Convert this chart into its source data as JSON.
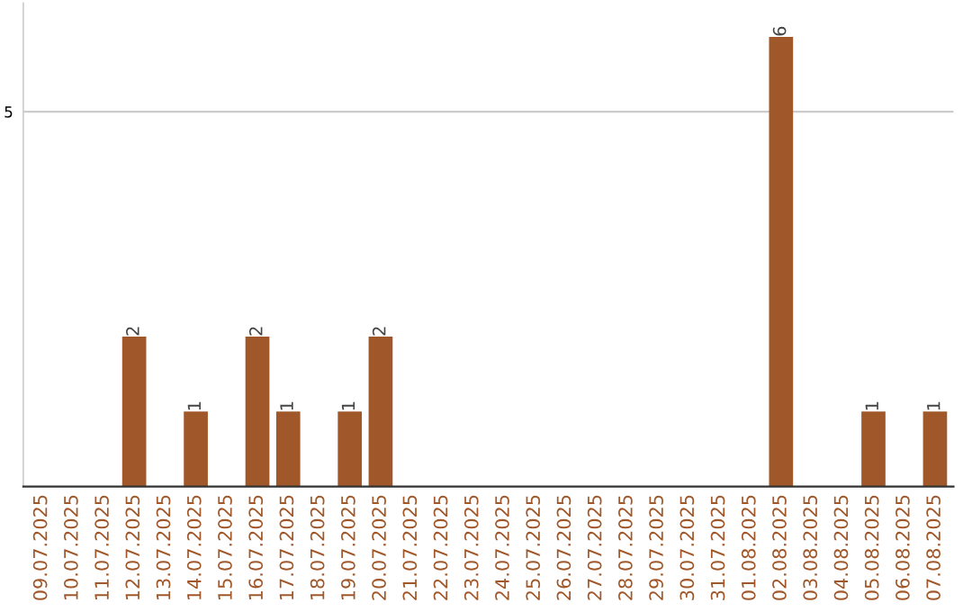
{
  "chart_data": {
    "type": "bar",
    "categories": [
      "09.07.2025",
      "10.07.2025",
      "11.07.2025",
      "12.07.2025",
      "13.07.2025",
      "14.07.2025",
      "15.07.2025",
      "16.07.2025",
      "17.07.2025",
      "18.07.2025",
      "19.07.2025",
      "20.07.2025",
      "21.07.2025",
      "22.07.2025",
      "23.07.2025",
      "24.07.2025",
      "25.07.2025",
      "26.07.2025",
      "27.07.2025",
      "28.07.2025",
      "29.07.2025",
      "30.07.2025",
      "31.07.2025",
      "01.08.2025",
      "02.08.2025",
      "03.08.2025",
      "04.08.2025",
      "05.08.2025",
      "06.08.2025",
      "07.08.2025"
    ],
    "values": [
      0,
      0,
      0,
      2,
      0,
      1,
      0,
      2,
      1,
      0,
      1,
      2,
      0,
      0,
      0,
      0,
      0,
      0,
      0,
      0,
      0,
      0,
      0,
      0,
      6,
      0,
      0,
      1,
      0,
      1
    ],
    "value_labels": [
      null,
      null,
      null,
      "2",
      null,
      "1",
      null,
      "2",
      "1",
      null,
      "1",
      "2",
      null,
      null,
      null,
      null,
      null,
      null,
      null,
      null,
      null,
      null,
      null,
      null,
      "6",
      null,
      null,
      "1",
      null,
      "1"
    ],
    "color": "#a0582a",
    "ylim": [
      0,
      6.45
    ],
    "yticks": [
      5
    ],
    "grid": "y"
  }
}
